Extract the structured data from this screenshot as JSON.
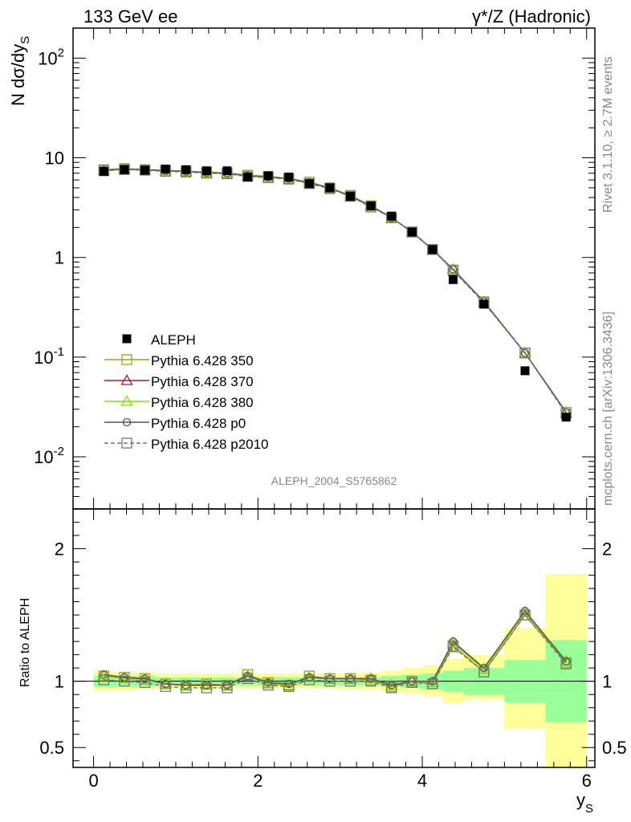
{
  "header": {
    "left_title": "133 GeV ee",
    "right_title_prefix": "γ*/Z",
    "right_title_suffix": "(Hadronic)"
  },
  "side_labels": {
    "rivet": "Rivet 3.1.10, ≥ 2.7M events",
    "mcplots": "mcplots.cern.ch [arXiv:1306.3436]"
  },
  "watermark": "ALEPH_2004_S5765862",
  "colors": {
    "data": "#000000",
    "p350": "#a0a020",
    "p370": "#a0202a",
    "p380": "#88dd00",
    "p0": "#555555",
    "p2010": "#777777",
    "band_inner": "#99ff99",
    "band_outer": "#ffff99"
  },
  "chart_data": [
    {
      "type": "scatter",
      "ylabel_main": "N dσ/dy",
      "ylabel_sub": "S",
      "yscale": "log",
      "ylim": [
        0.003,
        200
      ],
      "xlim": [
        -0.25,
        6.1
      ],
      "y_tick_labels": [
        "10^2",
        "10",
        "1",
        "10^-1",
        "10^-2"
      ],
      "legend_position": "middle-left",
      "x": [
        0.125,
        0.375,
        0.625,
        0.875,
        1.125,
        1.375,
        1.625,
        1.875,
        2.125,
        2.375,
        2.625,
        2.875,
        3.125,
        3.375,
        3.625,
        3.875,
        4.125,
        4.375,
        4.75,
        5.25,
        5.75
      ],
      "series": [
        {
          "name": "ALEPH",
          "key": "data",
          "marker": "filled-square",
          "values": [
            7.3,
            7.6,
            7.5,
            7.7,
            7.6,
            7.4,
            7.4,
            6.4,
            6.6,
            6.4,
            5.5,
            5.0,
            4.1,
            3.3,
            2.6,
            1.8,
            1.2,
            0.6,
            0.34,
            0.073,
            0.025
          ]
        },
        {
          "name": "Pythia 6.428 350",
          "key": "p350",
          "marker": "open-square",
          "dash": false,
          "values": [
            7.6,
            7.8,
            7.6,
            7.5,
            7.3,
            7.2,
            7.0,
            6.7,
            6.5,
            6.2,
            5.7,
            5.0,
            4.2,
            3.3,
            2.5,
            1.8,
            1.2,
            0.75,
            0.36,
            0.11,
            0.028
          ]
        },
        {
          "name": "Pythia 6.428 370",
          "key": "p370",
          "marker": "open-triangle",
          "dash": false,
          "values": [
            7.5,
            7.7,
            7.6,
            7.4,
            7.3,
            7.1,
            7.0,
            6.6,
            6.4,
            6.2,
            5.6,
            5.0,
            4.1,
            3.3,
            2.5,
            1.8,
            1.2,
            0.76,
            0.36,
            0.11,
            0.028
          ]
        },
        {
          "name": "Pythia 6.428 380",
          "key": "p380",
          "marker": "open-triangle",
          "dash": false,
          "values": [
            7.5,
            7.7,
            7.6,
            7.4,
            7.3,
            7.1,
            7.0,
            6.6,
            6.4,
            6.2,
            5.6,
            5.0,
            4.1,
            3.3,
            2.5,
            1.8,
            1.2,
            0.76,
            0.36,
            0.11,
            0.028
          ]
        },
        {
          "name": "Pythia 6.428 p0",
          "key": "p0",
          "marker": "open-circle",
          "dash": false,
          "values": [
            7.5,
            7.7,
            7.6,
            7.4,
            7.3,
            7.1,
            7.0,
            6.6,
            6.4,
            6.2,
            5.6,
            5.0,
            4.1,
            3.3,
            2.5,
            1.8,
            1.2,
            0.76,
            0.36,
            0.11,
            0.028
          ]
        },
        {
          "name": "Pythia 6.428 p2010",
          "key": "p2010",
          "marker": "open-square",
          "dash": true,
          "values": [
            7.4,
            7.6,
            7.5,
            7.3,
            7.2,
            7.0,
            6.9,
            6.5,
            6.3,
            6.1,
            5.5,
            4.9,
            4.1,
            3.2,
            2.5,
            1.8,
            1.2,
            0.74,
            0.35,
            0.11,
            0.027
          ]
        }
      ]
    },
    {
      "type": "line",
      "ylabel": "Ratio to ALEPH",
      "xlabel_main": "y",
      "xlabel_sub": "S",
      "ylim": [
        0.35,
        2.3
      ],
      "xlim": [
        -0.25,
        6.1
      ],
      "x_ticks": [
        0,
        2,
        4,
        6
      ],
      "y_ticks": [
        0.5,
        1,
        2
      ],
      "x_edges": [
        0,
        0.25,
        0.5,
        0.75,
        1.0,
        1.25,
        1.5,
        1.75,
        2.0,
        2.25,
        2.5,
        2.75,
        3.0,
        3.25,
        3.5,
        3.75,
        4.0,
        4.25,
        4.5,
        5.0,
        5.5,
        6.0
      ],
      "band_inner": [
        [
          0.96,
          1.04
        ],
        [
          0.96,
          1.04
        ],
        [
          0.96,
          1.04
        ],
        [
          0.97,
          1.03
        ],
        [
          0.97,
          1.03
        ],
        [
          0.97,
          1.03
        ],
        [
          0.97,
          1.03
        ],
        [
          0.97,
          1.03
        ],
        [
          0.97,
          1.03
        ],
        [
          0.97,
          1.03
        ],
        [
          0.97,
          1.03
        ],
        [
          0.97,
          1.03
        ],
        [
          0.97,
          1.03
        ],
        [
          0.97,
          1.03
        ],
        [
          0.96,
          1.04
        ],
        [
          0.95,
          1.05
        ],
        [
          0.94,
          1.06
        ],
        [
          0.92,
          1.08
        ],
        [
          0.9,
          1.1
        ],
        [
          0.84,
          1.16
        ],
        [
          0.69,
          1.31
        ]
      ],
      "band_outer": [
        [
          0.93,
          1.08
        ],
        [
          0.93,
          1.07
        ],
        [
          0.94,
          1.07
        ],
        [
          0.95,
          1.06
        ],
        [
          0.95,
          1.06
        ],
        [
          0.95,
          1.06
        ],
        [
          0.95,
          1.06
        ],
        [
          0.95,
          1.06
        ],
        [
          0.95,
          1.06
        ],
        [
          0.95,
          1.06
        ],
        [
          0.95,
          1.06
        ],
        [
          0.95,
          1.06
        ],
        [
          0.94,
          1.06
        ],
        [
          0.94,
          1.07
        ],
        [
          0.92,
          1.08
        ],
        [
          0.91,
          1.1
        ],
        [
          0.89,
          1.12
        ],
        [
          0.84,
          1.17
        ],
        [
          0.86,
          1.2
        ],
        [
          0.64,
          1.4
        ],
        [
          0.35,
          1.81
        ]
      ],
      "x": [
        0.125,
        0.375,
        0.625,
        0.875,
        1.125,
        1.375,
        1.625,
        1.875,
        2.125,
        2.375,
        2.625,
        2.875,
        3.125,
        3.375,
        3.625,
        3.875,
        4.125,
        4.375,
        4.75,
        5.25,
        5.75
      ],
      "series": [
        {
          "name": "Pythia 6.428 350",
          "key": "p350",
          "marker": "open-square",
          "dash": false,
          "values": [
            1.04,
            1.03,
            1.02,
            0.98,
            0.97,
            0.98,
            0.97,
            1.05,
            0.99,
            0.97,
            1.04,
            1.02,
            1.02,
            1.01,
            0.96,
            1.0,
            0.98,
            1.27,
            1.07,
            1.5,
            1.14
          ]
        },
        {
          "name": "Pythia 6.428 370",
          "key": "p370",
          "marker": "open-triangle",
          "dash": false,
          "values": [
            1.04,
            1.02,
            1.01,
            0.98,
            0.97,
            0.97,
            0.97,
            1.04,
            0.98,
            0.97,
            1.03,
            1.02,
            1.02,
            1.02,
            0.97,
            1.0,
            0.99,
            1.29,
            1.09,
            1.52,
            1.15
          ]
        },
        {
          "name": "Pythia 6.428 380",
          "key": "p380",
          "marker": "open-triangle",
          "dash": false,
          "values": [
            1.04,
            1.02,
            1.01,
            0.98,
            0.97,
            0.97,
            0.97,
            1.04,
            0.98,
            0.97,
            1.03,
            1.02,
            1.02,
            1.02,
            0.97,
            1.0,
            0.99,
            1.29,
            1.09,
            1.52,
            1.15
          ]
        },
        {
          "name": "Pythia 6.428 p0",
          "key": "p0",
          "marker": "open-circle",
          "dash": false,
          "values": [
            1.05,
            1.03,
            1.02,
            0.98,
            0.97,
            0.97,
            0.97,
            1.04,
            0.99,
            0.98,
            1.03,
            1.02,
            1.02,
            1.02,
            0.97,
            1.0,
            1.0,
            1.3,
            1.1,
            1.53,
            1.15
          ]
        },
        {
          "name": "Pythia 6.428 p2010",
          "key": "p2010",
          "marker": "open-square",
          "dash": true,
          "values": [
            1.01,
            1.0,
            0.99,
            0.96,
            0.95,
            0.95,
            0.95,
            1.02,
            0.97,
            0.96,
            1.01,
            1.0,
            1.0,
            1.0,
            0.95,
            0.99,
            0.98,
            1.26,
            1.07,
            1.5,
            1.13
          ]
        }
      ]
    }
  ]
}
